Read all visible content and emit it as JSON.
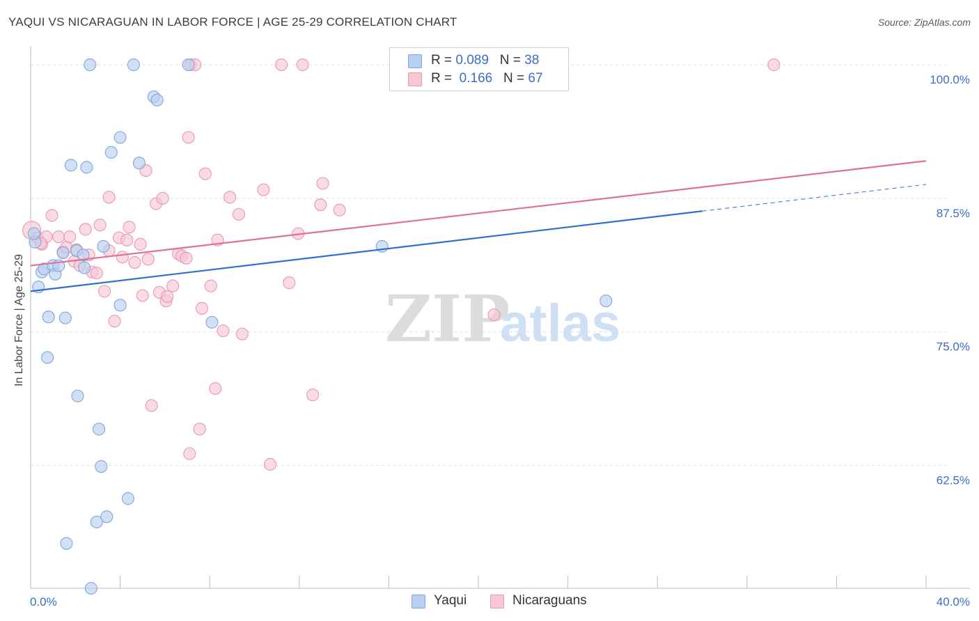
{
  "title": "YAQUI VS NICARAGUAN IN LABOR FORCE | AGE 25-29 CORRELATION CHART",
  "source": "Source: ZipAtlas.com",
  "watermark": {
    "zip": "ZIP",
    "atlas": "atlas"
  },
  "colors": {
    "yaqui_fill": "#b8d0f0",
    "yaqui_stroke": "#7fa6dc",
    "yaqui_line": "#2f6fd0",
    "nic_fill": "#f8c8d6",
    "nic_stroke": "#e897b0",
    "nic_line": "#e07098",
    "axis_text": "#3a6ec8",
    "grid": "#dddddd"
  },
  "legend": {
    "rows": [
      {
        "r_label": "R = ",
        "r_value": "0.089",
        "n_label": "N = ",
        "n_value": "38"
      },
      {
        "r_label": "R = ",
        "r_value": "0.166",
        "n_label": "N = ",
        "n_value": "67"
      }
    ]
  },
  "chart_data": {
    "type": "scatter",
    "xlabel": "",
    "ylabel": "In Labor Force | Age 25-29",
    "xlim": [
      0,
      40
    ],
    "ylim": [
      51,
      101.5
    ],
    "x_tick_labels": [
      {
        "value": 0,
        "label": "0.0%"
      },
      {
        "value": 40,
        "label": "40.0%"
      }
    ],
    "y_tick_labels": [
      {
        "value": 100,
        "label": "100.0%"
      },
      {
        "value": 87.5,
        "label": "87.5%"
      },
      {
        "value": 75,
        "label": "75.0%"
      },
      {
        "value": 62.5,
        "label": "62.5%"
      }
    ],
    "x_minor_ticks": [
      0,
      4,
      8,
      12,
      16,
      20,
      24,
      28,
      32,
      36,
      40
    ],
    "series": [
      {
        "name": "Yaqui",
        "r": 0.089,
        "n": 38,
        "trend": {
          "x0": 0,
          "y0": 78.8,
          "x1": 30,
          "y1": 86.3,
          "dash_x1": 40,
          "dash_y1": 88.8
        },
        "points": [
          [
            0.2,
            83.4
          ],
          [
            0.35,
            79.2
          ],
          [
            0.5,
            80.6
          ],
          [
            0.6,
            80.9
          ],
          [
            0.75,
            72.6
          ],
          [
            0.8,
            76.4
          ],
          [
            1.0,
            81.2
          ],
          [
            1.1,
            80.4
          ],
          [
            1.25,
            81.2
          ],
          [
            1.45,
            82.4
          ],
          [
            1.55,
            76.3
          ],
          [
            1.6,
            55.2
          ],
          [
            1.8,
            90.6
          ],
          [
            2.05,
            82.6
          ],
          [
            2.1,
            69.0
          ],
          [
            2.35,
            82.2
          ],
          [
            2.4,
            81.0
          ],
          [
            2.5,
            90.4
          ],
          [
            2.65,
            100.0
          ],
          [
            2.95,
            57.2
          ],
          [
            3.05,
            65.9
          ],
          [
            3.15,
            62.4
          ],
          [
            3.25,
            83.0
          ],
          [
            3.4,
            57.7
          ],
          [
            3.6,
            91.8
          ],
          [
            4.0,
            93.2
          ],
          [
            4.0,
            77.5
          ],
          [
            4.35,
            59.4
          ],
          [
            4.6,
            100.0
          ],
          [
            4.85,
            90.8
          ],
          [
            5.5,
            97.0
          ],
          [
            5.65,
            96.7
          ],
          [
            7.05,
            100.0
          ],
          [
            8.1,
            75.9
          ],
          [
            15.7,
            83.0
          ],
          [
            25.7,
            77.9
          ],
          [
            2.7,
            51.0
          ],
          [
            0.15,
            84.2
          ]
        ]
      },
      {
        "name": "Nicaraguans",
        "r": 0.166,
        "n": 67,
        "trend": {
          "x0": 0,
          "y0": 81.2,
          "x1": 40,
          "y1": 91.0
        },
        "points": [
          [
            0.05,
            84.5
          ],
          [
            0.3,
            83.8
          ],
          [
            0.5,
            83.2
          ],
          [
            0.7,
            83.9
          ],
          [
            0.95,
            85.9
          ],
          [
            1.25,
            83.9
          ],
          [
            1.45,
            82.5
          ],
          [
            1.6,
            82.9
          ],
          [
            1.75,
            83.9
          ],
          [
            1.95,
            81.6
          ],
          [
            2.05,
            82.7
          ],
          [
            2.2,
            81.2
          ],
          [
            2.45,
            84.6
          ],
          [
            2.6,
            82.2
          ],
          [
            2.75,
            80.6
          ],
          [
            2.95,
            80.5
          ],
          [
            3.1,
            85.0
          ],
          [
            3.3,
            78.8
          ],
          [
            3.5,
            82.6
          ],
          [
            3.5,
            87.6
          ],
          [
            3.75,
            76.0
          ],
          [
            3.95,
            83.8
          ],
          [
            4.1,
            82.0
          ],
          [
            4.3,
            83.6
          ],
          [
            4.4,
            84.8
          ],
          [
            4.65,
            81.5
          ],
          [
            4.9,
            83.2
          ],
          [
            5.0,
            78.4
          ],
          [
            5.15,
            90.1
          ],
          [
            5.25,
            81.8
          ],
          [
            5.4,
            68.1
          ],
          [
            5.6,
            87.0
          ],
          [
            5.75,
            78.7
          ],
          [
            5.9,
            87.5
          ],
          [
            6.05,
            77.9
          ],
          [
            6.1,
            78.3
          ],
          [
            6.35,
            79.3
          ],
          [
            6.6,
            82.3
          ],
          [
            6.75,
            82.1
          ],
          [
            6.95,
            81.9
          ],
          [
            7.05,
            93.2
          ],
          [
            7.1,
            63.6
          ],
          [
            7.15,
            100.0
          ],
          [
            7.35,
            100.0
          ],
          [
            7.55,
            65.9
          ],
          [
            7.65,
            77.2
          ],
          [
            7.8,
            89.8
          ],
          [
            8.05,
            79.3
          ],
          [
            8.25,
            69.7
          ],
          [
            8.35,
            83.6
          ],
          [
            8.6,
            75.1
          ],
          [
            8.9,
            87.6
          ],
          [
            9.3,
            86.0
          ],
          [
            9.45,
            74.8
          ],
          [
            10.4,
            88.3
          ],
          [
            10.7,
            62.6
          ],
          [
            11.2,
            100.0
          ],
          [
            11.55,
            79.6
          ],
          [
            11.95,
            84.2
          ],
          [
            12.15,
            100.0
          ],
          [
            12.6,
            69.1
          ],
          [
            12.95,
            86.9
          ],
          [
            13.05,
            88.9
          ],
          [
            13.8,
            86.4
          ],
          [
            20.7,
            76.6
          ],
          [
            33.2,
            100.0
          ],
          [
            0.45,
            83.3
          ]
        ]
      }
    ]
  },
  "bottom_legend": [
    "Yaqui",
    "Nicaraguans"
  ]
}
